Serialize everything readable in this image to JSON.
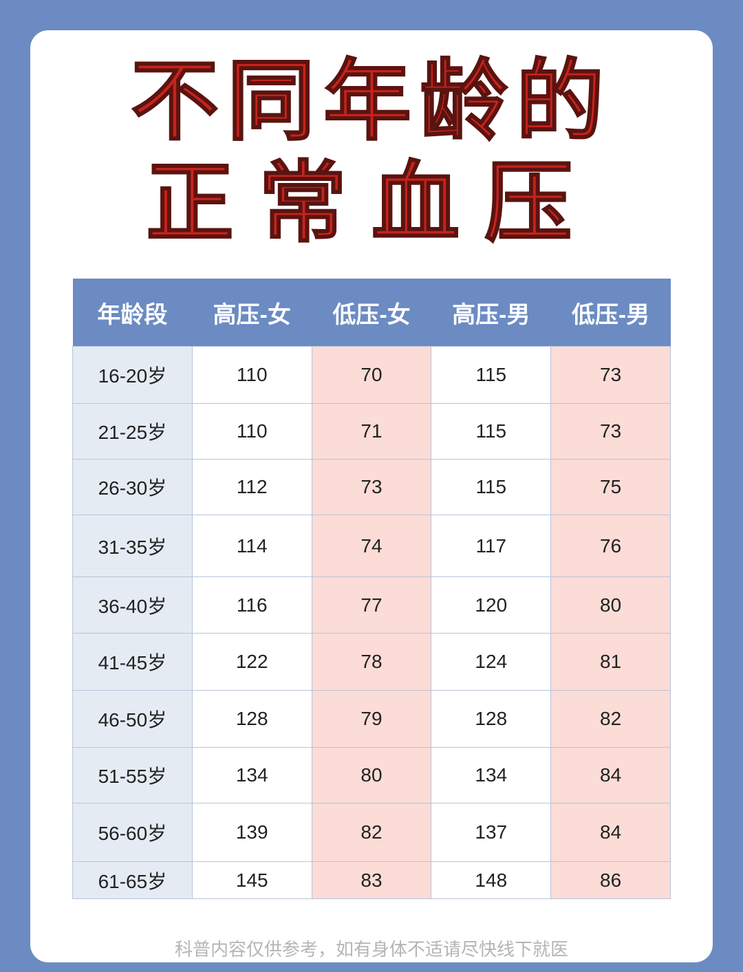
{
  "title": {
    "line1": "不同年龄的",
    "line2": "正常血压"
  },
  "table": {
    "headers": [
      "年龄段",
      "高压-女",
      "低压-女",
      "高压-男",
      "低压-男"
    ],
    "rows": [
      [
        "16-20岁",
        "110",
        "70",
        "115",
        "73"
      ],
      [
        "21-25岁",
        "110",
        "71",
        "115",
        "73"
      ],
      [
        "26-30岁",
        "112",
        "73",
        "115",
        "75"
      ],
      [
        "31-35岁",
        "114",
        "74",
        "117",
        "76"
      ],
      [
        "36-40岁",
        "116",
        "77",
        "120",
        "80"
      ],
      [
        "41-45岁",
        "122",
        "78",
        "124",
        "81"
      ],
      [
        "46-50岁",
        "128",
        "79",
        "128",
        "82"
      ],
      [
        "51-55岁",
        "134",
        "80",
        "134",
        "84"
      ],
      [
        "56-60岁",
        "139",
        "82",
        "137",
        "84"
      ],
      [
        "61-65岁",
        "145",
        "83",
        "148",
        "86"
      ]
    ]
  },
  "footer": "科普内容仅供参考，如有身体不适请尽快线下就医",
  "colors": {
    "background": "#6b8bc2",
    "title": "#c8221d",
    "header": "#6b8bc2",
    "age_col": "#e5ebf3",
    "low_col": "#fbdcd6"
  }
}
